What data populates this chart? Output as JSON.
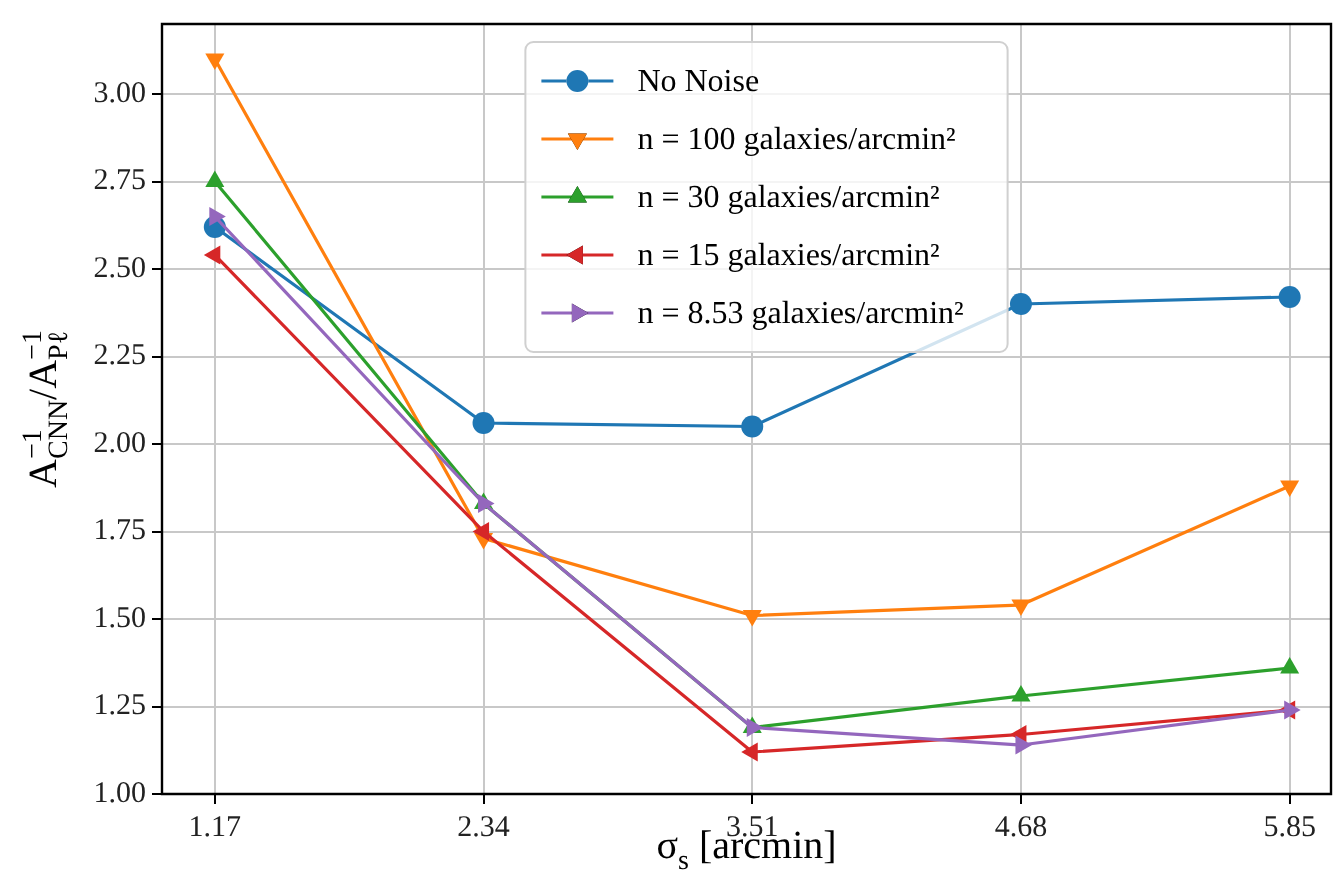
{
  "chart_data": {
    "type": "line",
    "xlabel": "σ$_{s}$ [arcmin]",
    "ylabel": "A$_{CNN}$$^{−1}$/A$_{Pℓ}$$^{−1}$",
    "x": [
      1.17,
      2.34,
      3.51,
      4.68,
      5.85
    ],
    "xlim": [
      0.94,
      6.03
    ],
    "xticks": [
      1.17,
      2.34,
      3.51,
      4.68,
      5.85
    ],
    "ylim": [
      1.0,
      3.2
    ],
    "yticks": [
      {
        "value": 1.0,
        "label": "1.00"
      },
      {
        "value": 1.25,
        "label": "1.25"
      },
      {
        "value": 1.5,
        "label": "1.50"
      },
      {
        "value": 1.75,
        "label": "1.75"
      },
      {
        "value": 2.0,
        "label": "2.00"
      },
      {
        "value": 2.25,
        "label": "2.25"
      },
      {
        "value": 2.5,
        "label": "2.50"
      },
      {
        "value": 2.75,
        "label": "2.75"
      },
      {
        "value": 3.0,
        "label": "3.00"
      }
    ],
    "grid": true,
    "legend": "top",
    "line_style": "solid",
    "series": [
      {
        "name": "No Noise",
        "color": "#1f77b4",
        "marker": "circle",
        "values": [
          2.62,
          2.06,
          2.05,
          2.4,
          2.42
        ]
      },
      {
        "name": "n = 100 galaxies/arcmin²",
        "color": "#ff7f0e",
        "marker": "triangle-down",
        "values": [
          3.1,
          1.73,
          1.51,
          1.54,
          1.88
        ]
      },
      {
        "name": "n = 30 galaxies/arcmin²",
        "color": "#2ca02c",
        "marker": "triangle-up",
        "values": [
          2.75,
          1.83,
          1.19,
          1.28,
          1.36
        ]
      },
      {
        "name": "n = 15 galaxies/arcmin²",
        "color": "#d62728",
        "marker": "triangle-left",
        "values": [
          2.54,
          1.75,
          1.12,
          1.17,
          1.24
        ]
      },
      {
        "name": "n = 8.53 galaxies/arcmin²",
        "color": "#9467bd",
        "marker": "triangle-right",
        "values": [
          2.65,
          1.83,
          1.19,
          1.14,
          1.24
        ]
      }
    ]
  }
}
